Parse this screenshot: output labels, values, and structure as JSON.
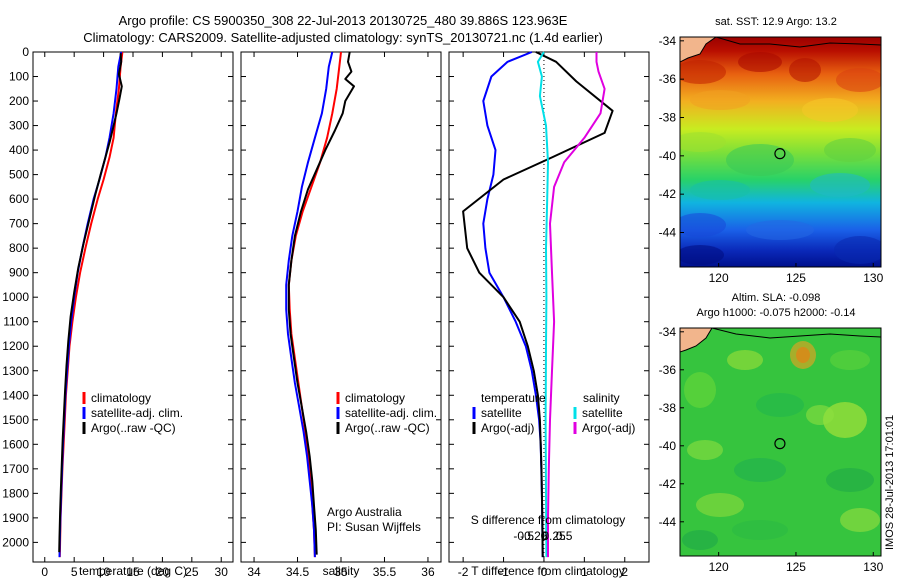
{
  "title": {
    "line1": "Argo profile: CS 5900350_308 22-Jul-2013 20130725_480 39.886S 123.963E",
    "line2": "Climatology: CARS2009. Satellite-adjusted climatology: synTS_20130721.nc (1.4d earlier)"
  },
  "colors": {
    "climatology": "#ff0000",
    "satellite": "#0000ff",
    "argo": "#000000",
    "sat_diff_S": "#00e0e8",
    "argo_diff_S": "#e000e0"
  },
  "timestamp": "IMOS 28-Jul-2013 17:01:01",
  "chart_data": [
    {
      "type": "line",
      "name": "temperature-profile",
      "xlabel": "temperature (deg C)",
      "ylabel": "",
      "xlim": [
        -2,
        32
      ],
      "ylim": [
        2080,
        0
      ],
      "xticks": [
        0,
        5,
        10,
        15,
        20,
        25,
        30
      ],
      "yticks": [
        0,
        100,
        200,
        300,
        400,
        500,
        600,
        700,
        800,
        900,
        1000,
        1100,
        1200,
        1300,
        1400,
        1500,
        1600,
        1700,
        1800,
        1900,
        2000
      ],
      "legend": [
        "climatology",
        "satellite-adj. clim.",
        "Argo(..raw -QC)"
      ],
      "series": [
        {
          "name": "climatology",
          "color": "red",
          "points": [
            [
              13.2,
              0
            ],
            [
              12.9,
              60
            ],
            [
              12.6,
              150
            ],
            [
              12.1,
              250
            ],
            [
              11.7,
              350
            ],
            [
              11.0,
              430
            ],
            [
              10.0,
              520
            ],
            [
              9.0,
              600
            ],
            [
              7.9,
              700
            ],
            [
              6.9,
              800
            ],
            [
              6.0,
              900
            ],
            [
              5.3,
              1000
            ],
            [
              4.7,
              1100
            ],
            [
              4.2,
              1200
            ],
            [
              3.9,
              1300
            ],
            [
              3.6,
              1400
            ],
            [
              3.4,
              1500
            ],
            [
              3.2,
              1600
            ],
            [
              3.0,
              1700
            ],
            [
              2.85,
              1800
            ],
            [
              2.7,
              1900
            ],
            [
              2.6,
              2000
            ],
            [
              2.55,
              2060
            ]
          ]
        },
        {
          "name": "satellite-adj. clim.",
          "color": "blue",
          "points": [
            [
              13.0,
              0
            ],
            [
              12.5,
              60
            ],
            [
              12.2,
              150
            ],
            [
              11.7,
              250
            ],
            [
              11.0,
              350
            ],
            [
              10.3,
              430
            ],
            [
              9.3,
              520
            ],
            [
              8.3,
              600
            ],
            [
              7.3,
              700
            ],
            [
              6.4,
              800
            ],
            [
              5.6,
              900
            ],
            [
              5.0,
              1000
            ],
            [
              4.5,
              1100
            ],
            [
              4.1,
              1200
            ],
            [
              3.8,
              1300
            ],
            [
              3.5,
              1400
            ],
            [
              3.3,
              1500
            ],
            [
              3.1,
              1600
            ],
            [
              2.95,
              1700
            ],
            [
              2.8,
              1800
            ],
            [
              2.65,
              1900
            ],
            [
              2.55,
              2000
            ],
            [
              2.5,
              2060
            ]
          ]
        },
        {
          "name": "Argo(..raw -QC)",
          "color": "black",
          "points": [
            [
              12.9,
              5
            ],
            [
              13.0,
              40
            ],
            [
              12.6,
              90
            ],
            [
              13.1,
              140
            ],
            [
              12.7,
              190
            ],
            [
              12.2,
              250
            ],
            [
              11.7,
              300
            ],
            [
              11.1,
              360
            ],
            [
              10.3,
              430
            ],
            [
              9.5,
              500
            ],
            [
              8.6,
              580
            ],
            [
              7.6,
              680
            ],
            [
              6.6,
              780
            ],
            [
              5.7,
              880
            ],
            [
              5.0,
              980
            ],
            [
              4.4,
              1080
            ],
            [
              4.0,
              1180
            ],
            [
              3.7,
              1280
            ],
            [
              3.45,
              1380
            ],
            [
              3.25,
              1480
            ],
            [
              3.05,
              1580
            ],
            [
              2.9,
              1680
            ],
            [
              2.75,
              1780
            ],
            [
              2.6,
              1880
            ],
            [
              2.5,
              1980
            ],
            [
              2.45,
              2040
            ]
          ]
        }
      ]
    },
    {
      "type": "line",
      "name": "salinity-profile",
      "xlabel": "salinity",
      "ylabel": "",
      "xlim": [
        33.85,
        36.15
      ],
      "ylim": [
        2080,
        0
      ],
      "xticks": [
        34,
        34.5,
        35,
        35.5,
        36
      ],
      "legend": [
        "climatology",
        "satellite-adj. clim.",
        "Argo(..raw -QC)"
      ],
      "annotation": [
        "Argo Australia",
        "PI: Susan Wijffels"
      ],
      "series": [
        {
          "name": "climatology",
          "color": "red",
          "points": [
            [
              35.0,
              0
            ],
            [
              34.98,
              60
            ],
            [
              34.95,
              150
            ],
            [
              34.9,
              250
            ],
            [
              34.84,
              350
            ],
            [
              34.76,
              450
            ],
            [
              34.66,
              550
            ],
            [
              34.56,
              650
            ],
            [
              34.48,
              750
            ],
            [
              34.43,
              850
            ],
            [
              34.4,
              950
            ],
            [
              34.41,
              1050
            ],
            [
              34.43,
              1150
            ],
            [
              34.47,
              1250
            ],
            [
              34.51,
              1350
            ],
            [
              34.55,
              1450
            ],
            [
              34.59,
              1550
            ],
            [
              34.62,
              1650
            ],
            [
              34.65,
              1750
            ],
            [
              34.67,
              1850
            ],
            [
              34.69,
              1950
            ],
            [
              34.7,
              2060
            ]
          ]
        },
        {
          "name": "satellite-adj. clim.",
          "color": "blue",
          "points": [
            [
              34.9,
              0
            ],
            [
              34.86,
              60
            ],
            [
              34.83,
              150
            ],
            [
              34.78,
              250
            ],
            [
              34.7,
              350
            ],
            [
              34.62,
              450
            ],
            [
              34.55,
              550
            ],
            [
              34.5,
              650
            ],
            [
              34.44,
              750
            ],
            [
              34.4,
              850
            ],
            [
              34.37,
              950
            ],
            [
              34.37,
              1050
            ],
            [
              34.39,
              1150
            ],
            [
              34.43,
              1250
            ],
            [
              34.47,
              1350
            ],
            [
              34.52,
              1450
            ],
            [
              34.57,
              1550
            ],
            [
              34.61,
              1650
            ],
            [
              34.64,
              1750
            ],
            [
              34.67,
              1850
            ],
            [
              34.69,
              1950
            ],
            [
              34.7,
              2060
            ]
          ]
        },
        {
          "name": "Argo(..raw -QC)",
          "color": "black",
          "points": [
            [
              35.1,
              0
            ],
            [
              35.08,
              40
            ],
            [
              35.12,
              80
            ],
            [
              35.05,
              110
            ],
            [
              35.15,
              140
            ],
            [
              35.05,
              200
            ],
            [
              35.02,
              250
            ],
            [
              34.93,
              320
            ],
            [
              34.82,
              400
            ],
            [
              34.72,
              480
            ],
            [
              34.62,
              560
            ],
            [
              34.54,
              650
            ],
            [
              34.47,
              750
            ],
            [
              34.43,
              850
            ],
            [
              34.4,
              950
            ],
            [
              34.4,
              1050
            ],
            [
              34.42,
              1150
            ],
            [
              34.46,
              1250
            ],
            [
              34.5,
              1350
            ],
            [
              34.55,
              1450
            ],
            [
              34.6,
              1550
            ],
            [
              34.64,
              1650
            ],
            [
              34.67,
              1750
            ],
            [
              34.69,
              1850
            ],
            [
              34.71,
              1950
            ],
            [
              34.72,
              2050
            ]
          ]
        }
      ]
    },
    {
      "type": "line",
      "name": "difference-from-climatology",
      "xlabel": "T difference from climatology",
      "xlabel_top": "S difference from climatology",
      "xlim": [
        -2.35,
        2.6
      ],
      "ylim": [
        2080,
        0
      ],
      "xticks": [
        -2,
        -1,
        0,
        1,
        2
      ],
      "xticklabels_top": [
        "-0.5",
        "-0.25",
        "0",
        "0.25",
        "0.5"
      ],
      "legend": {
        "temperature_heading": "temperature",
        "salinity_heading": "salinity",
        "entries": [
          "satellite",
          "Argo(-adj)",
          "satellite",
          "Argo(-adj)"
        ]
      },
      "series": [
        {
          "name": "temperature satellite",
          "color": "blue",
          "points": [
            [
              -0.3,
              0
            ],
            [
              -0.9,
              40
            ],
            [
              -1.3,
              100
            ],
            [
              -1.5,
              200
            ],
            [
              -1.4,
              300
            ],
            [
              -1.2,
              400
            ],
            [
              -1.25,
              500
            ],
            [
              -1.4,
              600
            ],
            [
              -1.5,
              700
            ],
            [
              -1.45,
              800
            ],
            [
              -1.35,
              900
            ],
            [
              -1.0,
              1000
            ],
            [
              -0.7,
              1100
            ],
            [
              -0.45,
              1200
            ],
            [
              -0.3,
              1300
            ],
            [
              -0.2,
              1400
            ],
            [
              -0.12,
              1500
            ],
            [
              -0.08,
              1600
            ],
            [
              -0.05,
              1800
            ],
            [
              -0.03,
              2060
            ]
          ]
        },
        {
          "name": "temperature Argo(-adj)",
          "color": "black",
          "points": [
            [
              -0.2,
              0
            ],
            [
              0.3,
              40
            ],
            [
              0.8,
              120
            ],
            [
              1.7,
              240
            ],
            [
              1.5,
              330
            ],
            [
              0.2,
              430
            ],
            [
              -1.0,
              520
            ],
            [
              -2.0,
              650
            ],
            [
              -1.9,
              800
            ],
            [
              -1.6,
              900
            ],
            [
              -1.0,
              1000
            ],
            [
              -0.6,
              1100
            ],
            [
              -0.4,
              1200
            ],
            [
              -0.25,
              1300
            ],
            [
              -0.15,
              1400
            ],
            [
              -0.1,
              1500
            ],
            [
              -0.06,
              1700
            ],
            [
              -0.04,
              1900
            ],
            [
              -0.03,
              2060
            ]
          ]
        },
        {
          "name": "salinity satellite",
          "color": "cyan",
          "points": [
            [
              0.0,
              0
            ],
            [
              -0.15,
              40
            ],
            [
              -0.05,
              100
            ],
            [
              -0.1,
              180
            ],
            [
              0.05,
              300
            ],
            [
              0.1,
              450
            ],
            [
              0.08,
              600
            ],
            [
              0.05,
              800
            ],
            [
              0.06,
              1000
            ],
            [
              0.05,
              1200
            ],
            [
              0.04,
              1500
            ],
            [
              0.05,
              1800
            ],
            [
              0.06,
              2060
            ]
          ]
        },
        {
          "name": "salinity Argo(-adj)",
          "color": "magenta",
          "points": [
            [
              1.3,
              0
            ],
            [
              1.3,
              40
            ],
            [
              1.35,
              80
            ],
            [
              1.5,
              150
            ],
            [
              1.4,
              250
            ],
            [
              1.0,
              350
            ],
            [
              0.5,
              450
            ],
            [
              0.25,
              550
            ],
            [
              0.15,
              700
            ],
            [
              0.2,
              900
            ],
            [
              0.25,
              1100
            ],
            [
              0.2,
              1300
            ],
            [
              0.15,
              1500
            ],
            [
              0.12,
              1700
            ],
            [
              0.1,
              1900
            ],
            [
              0.1,
              2060
            ]
          ]
        }
      ]
    },
    {
      "type": "heatmap",
      "name": "sst-map",
      "title": "sat. SST: 12.9 Argo: 13.2",
      "xlim": [
        117.5,
        130.5
      ],
      "ylim": [
        -45.8,
        -33.8
      ],
      "xticks": [
        120,
        125,
        130
      ],
      "yticks": [
        -34,
        -36,
        -38,
        -40,
        -42,
        -44
      ],
      "marker": [
        123.963,
        -39.886
      ]
    },
    {
      "type": "heatmap",
      "name": "sla-map",
      "title_line1": "Altim. SLA: -0.098",
      "title_line2": "Argo h1000: -0.075 h2000: -0.14",
      "xlim": [
        117.5,
        130.5
      ],
      "ylim": [
        -45.8,
        -33.8
      ],
      "xticks": [
        120,
        125,
        130
      ],
      "yticks": [
        -34,
        -36,
        -38,
        -40,
        -42,
        -44
      ],
      "marker": [
        123.963,
        -39.886
      ]
    }
  ]
}
